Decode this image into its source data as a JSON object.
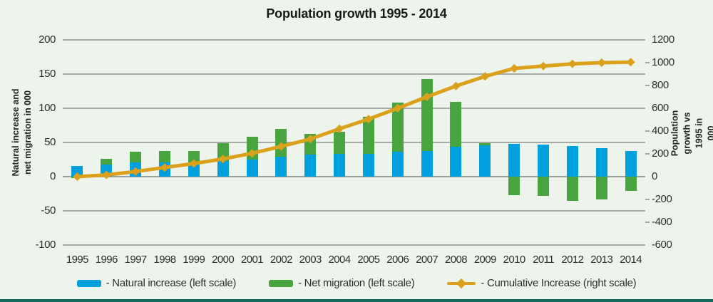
{
  "title": "Population growth 1995 - 2014",
  "left_axis": {
    "title": "Natural increase and\nnet migration in 000",
    "ticks": [
      200,
      150,
      100,
      50,
      0,
      -50,
      -100
    ],
    "range": [
      -100,
      200
    ]
  },
  "right_axis": {
    "title": "Population growth vs 1995 in 000",
    "ticks": [
      1200,
      1000,
      800,
      600,
      400,
      200,
      0,
      -200,
      -400,
      -600
    ],
    "range": [
      -600,
      1200
    ]
  },
  "legend": {
    "items": [
      {
        "label": "- Natural increase (left scale)",
        "swatch": "blue-bar-swatch"
      },
      {
        "label": "- Net migration (left scale)",
        "swatch": "green-bar-swatch"
      },
      {
        "label": "- Cumulative Increase (right scale)",
        "swatch": "orange-line-diamond-swatch"
      }
    ]
  },
  "colors": {
    "background": "#edf4ec",
    "natural_increase": "#009fdd",
    "net_migration": "#47a43f",
    "cumulative": "#dca11c",
    "gridline": "#a6ada9",
    "title_text": "#191919",
    "bottom_strip": "#176a60"
  },
  "chart_data": {
    "type": "bar",
    "subtype": "stacked bars with overlaid line (dual axis)",
    "title": "Population growth 1995 - 2014",
    "categories": [
      1995,
      1996,
      1997,
      1998,
      1999,
      2000,
      2001,
      2002,
      2003,
      2004,
      2005,
      2006,
      2007,
      2008,
      2009,
      2010,
      2011,
      2012,
      2013,
      2014
    ],
    "series": [
      {
        "name": "Natural increase",
        "type": "bar",
        "axis": "left",
        "stacked": true,
        "values": [
          16,
          18,
          21,
          21,
          21,
          23,
          25,
          29,
          32,
          33,
          33,
          36,
          38,
          44,
          46,
          48,
          47,
          45,
          42,
          38
        ]
      },
      {
        "name": "Net migration",
        "type": "bar",
        "axis": "left",
        "stacked": true,
        "values": [
          -2,
          8,
          15,
          17,
          17,
          26,
          33,
          41,
          30,
          33,
          55,
          72,
          105,
          65,
          3,
          -27,
          -28,
          -35,
          -33,
          -21
        ]
      },
      {
        "name": "Cumulative Increase",
        "type": "line",
        "axis": "right",
        "marker": "diamond",
        "values": [
          0,
          15,
          45,
          80,
          115,
          155,
          205,
          265,
          330,
          420,
          505,
          600,
          700,
          795,
          880,
          950,
          970,
          990,
          1000,
          1005
        ]
      }
    ],
    "xlabel": "",
    "ylabel_left": "Natural increase and net migration in 000",
    "ylabel_right": "Population growth vs 1995 in 000",
    "ylim_left": [
      -100,
      200
    ],
    "ylim_right": [
      -600,
      1200
    ],
    "grid": true,
    "legend_position": "bottom"
  }
}
